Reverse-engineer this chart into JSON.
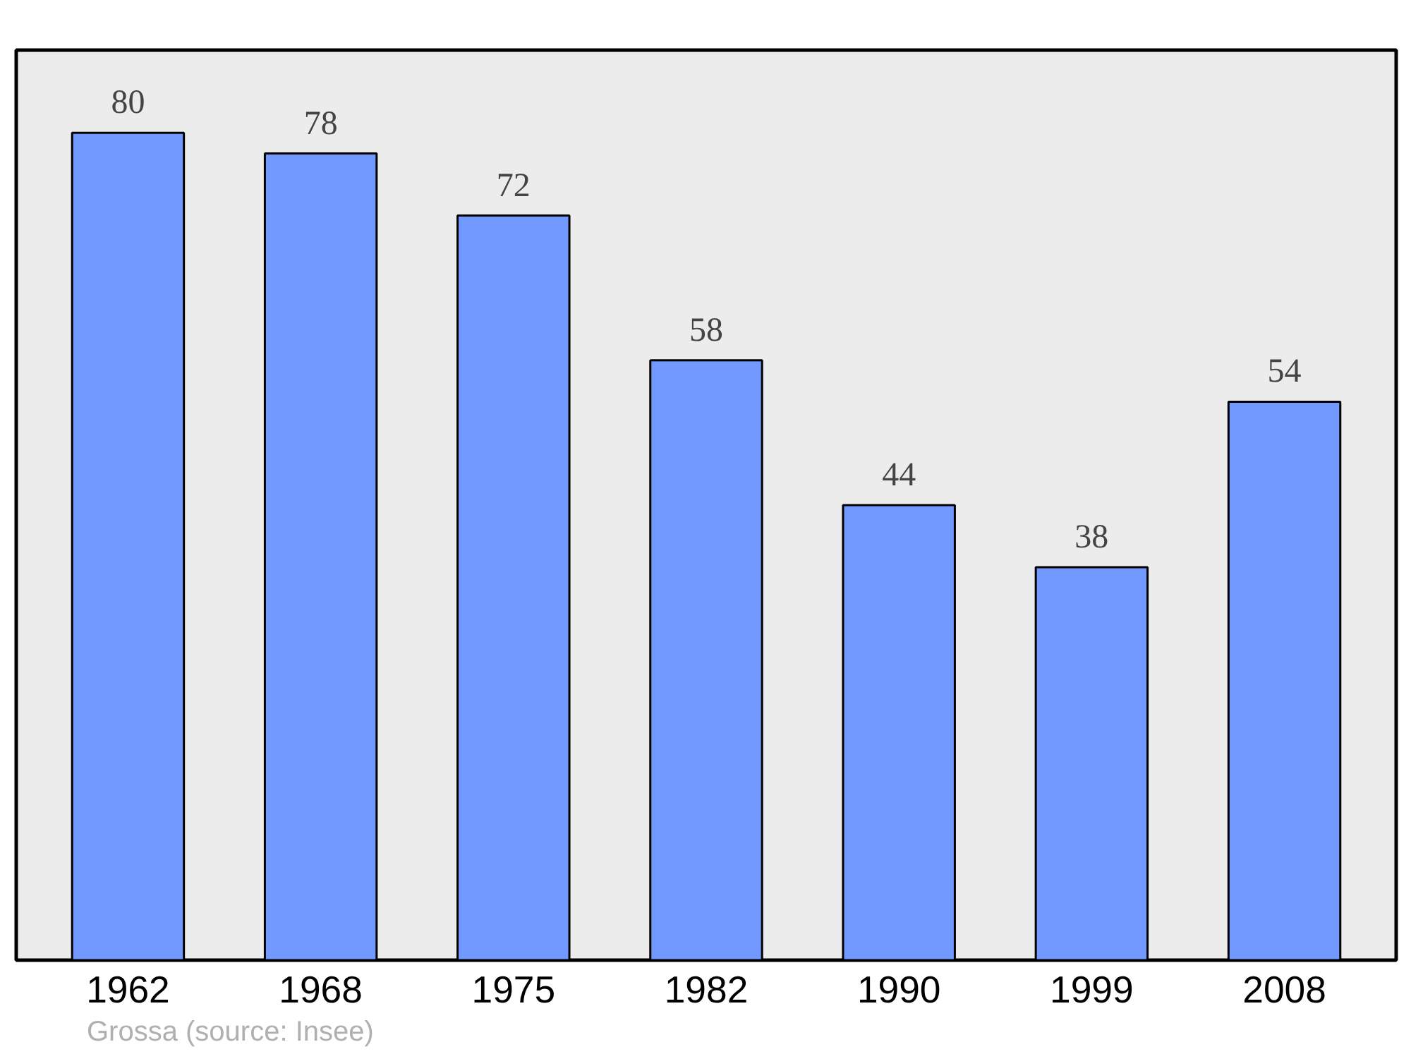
{
  "chart_data": {
    "type": "bar",
    "categories": [
      "1962",
      "1968",
      "1975",
      "1982",
      "1990",
      "1999",
      "2008"
    ],
    "values": [
      80,
      78,
      72,
      58,
      44,
      38,
      54
    ],
    "color": "#7299ff",
    "ylim": [
      0,
      88
    ],
    "data_labels": true,
    "tick_labels": "x",
    "grid": false,
    "annotations": [
      "Grossa    (source: Insee)"
    ]
  }
}
